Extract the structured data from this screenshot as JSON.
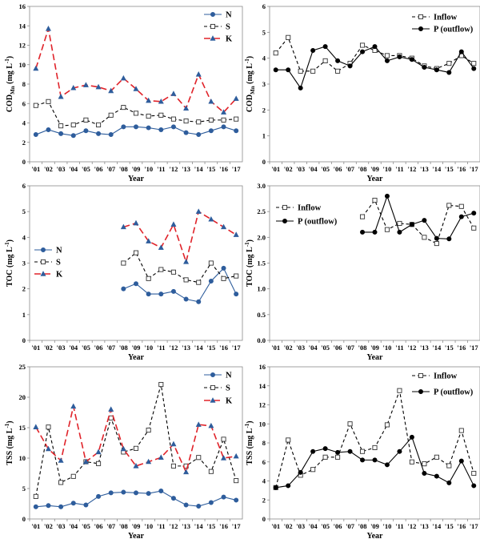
{
  "chart_data": [
    {
      "type": "line",
      "xlabel": "Year",
      "ylabel": {
        "main": "COD",
        "sub": "Mn",
        "unit": " (mg L",
        "sup": "-1",
        "close": ")"
      },
      "x": [
        "'01",
        "'02",
        "'03",
        "'04",
        "'05",
        "'06",
        "'07",
        "'08",
        "'09",
        "'10",
        "'11",
        "'12",
        "'13",
        "'14",
        "'15",
        "'16",
        "'17"
      ],
      "ylim": [
        0,
        16
      ],
      "yticks": [
        0,
        2,
        4,
        6,
        8,
        10,
        12,
        14,
        16
      ],
      "legend": "top-right",
      "series": [
        {
          "name": "N",
          "color": "#2e5d9c",
          "marker": "circle-filled",
          "dash": "solid",
          "values": [
            2.8,
            3.3,
            2.9,
            2.7,
            3.2,
            2.9,
            2.8,
            3.6,
            3.6,
            3.5,
            3.3,
            3.6,
            3.0,
            2.8,
            3.2,
            3.6,
            3.2
          ]
        },
        {
          "name": "S",
          "color": "#000000",
          "marker": "square-open",
          "dash": "dashed",
          "values": [
            5.8,
            6.2,
            3.7,
            3.8,
            4.3,
            3.8,
            4.8,
            5.6,
            5.0,
            4.7,
            4.8,
            4.4,
            4.2,
            4.1,
            4.3,
            4.3,
            4.4
          ]
        },
        {
          "name": "K",
          "color": "#e0232a",
          "marker": "triangle-filled",
          "dash": "longdash",
          "values": [
            9.6,
            13.7,
            6.7,
            7.6,
            7.9,
            7.7,
            7.3,
            8.6,
            7.5,
            6.3,
            6.2,
            7.0,
            5.5,
            9.0,
            6.2,
            5.1,
            6.5
          ]
        }
      ]
    },
    {
      "type": "line",
      "xlabel": "Year",
      "ylabel": {
        "main": "COD",
        "sub": "Mn",
        "unit": " (mg L",
        "sup": "-1",
        "close": ")"
      },
      "x": [
        "'01",
        "'02",
        "'03",
        "'04",
        "'05",
        "'06",
        "'07",
        "'08",
        "'09",
        "'10",
        "'11",
        "'12",
        "'13",
        "'14",
        "'15",
        "'16",
        "'17"
      ],
      "ylim": [
        0,
        6
      ],
      "yticks": [
        0,
        1,
        2,
        3,
        4,
        5,
        6
      ],
      "legend": "top-right",
      "series": [
        {
          "name": "Inflow",
          "color": "#000000",
          "marker": "square-open",
          "dash": "dashed",
          "values": [
            4.2,
            4.8,
            3.5,
            3.5,
            3.9,
            3.5,
            3.8,
            4.5,
            4.3,
            4.1,
            4.1,
            4.0,
            3.7,
            3.6,
            3.8,
            4.1,
            3.8
          ]
        },
        {
          "name": "P (outflow)",
          "color": "#000000",
          "marker": "circle-filled",
          "dash": "solid",
          "values": [
            3.55,
            3.55,
            2.85,
            4.3,
            4.45,
            3.9,
            3.7,
            4.25,
            4.45,
            3.9,
            4.05,
            3.95,
            3.65,
            3.55,
            3.45,
            4.25,
            3.6
          ]
        }
      ]
    },
    {
      "type": "line",
      "xlabel": "Year",
      "ylabel": {
        "main": "TOC",
        "sub": "",
        "unit": " (mg L",
        "sup": "-1",
        "close": ")"
      },
      "x": [
        "'01",
        "'02",
        "'03",
        "'04",
        "'05",
        "'06",
        "'07",
        "'08",
        "'09",
        "'10",
        "'11",
        "'12",
        "'13",
        "'14",
        "'15",
        "'16",
        "'17"
      ],
      "ylim": [
        0,
        6
      ],
      "yticks": [
        0,
        1,
        2,
        3,
        4,
        5,
        6
      ],
      "legend": "mid-left",
      "series": [
        {
          "name": "N",
          "color": "#2e5d9c",
          "marker": "circle-filled",
          "dash": "solid",
          "values": [
            null,
            null,
            null,
            null,
            null,
            null,
            null,
            2.0,
            2.2,
            1.8,
            1.8,
            1.9,
            1.6,
            1.5,
            2.3,
            2.8,
            1.8
          ]
        },
        {
          "name": "S",
          "color": "#000000",
          "marker": "square-open",
          "dash": "dashed",
          "values": [
            null,
            null,
            null,
            null,
            null,
            null,
            null,
            3.0,
            3.4,
            2.4,
            2.75,
            2.65,
            2.35,
            2.25,
            3.0,
            2.4,
            2.5
          ]
        },
        {
          "name": "K",
          "color": "#e0232a",
          "marker": "triangle-filled",
          "dash": "longdash",
          "values": [
            null,
            null,
            null,
            null,
            null,
            null,
            null,
            4.4,
            4.55,
            3.85,
            3.6,
            4.5,
            3.05,
            5.0,
            4.7,
            4.4,
            4.1
          ]
        }
      ]
    },
    {
      "type": "line",
      "xlabel": "Year",
      "ylabel": {
        "main": "TOC",
        "sub": "",
        "unit": " (mg L",
        "sup": "-1",
        "close": ")"
      },
      "x": [
        "'01",
        "'02",
        "'03",
        "'04",
        "'05",
        "'06",
        "'07",
        "'08",
        "'09",
        "'10",
        "'11",
        "'12",
        "'13",
        "'14",
        "'15",
        "'16",
        "'17"
      ],
      "ylim": [
        0,
        3
      ],
      "yticks": [
        0,
        0.5,
        1,
        1.5,
        2,
        2.5,
        3
      ],
      "ytickLabels": [
        "0.0",
        "0.5",
        "1.0",
        "1.5",
        "2.0",
        "2.5",
        "3.0"
      ],
      "legend": "top-left",
      "series": [
        {
          "name": "Inflow",
          "color": "#000000",
          "marker": "square-open",
          "dash": "dashed",
          "values": [
            null,
            null,
            null,
            null,
            null,
            null,
            null,
            2.4,
            2.72,
            2.15,
            2.27,
            2.25,
            2.0,
            1.88,
            2.62,
            2.6,
            2.18
          ]
        },
        {
          "name": "P (outflow)",
          "color": "#000000",
          "marker": "circle-filled",
          "dash": "solid",
          "values": [
            null,
            null,
            null,
            null,
            null,
            null,
            null,
            2.1,
            2.1,
            2.8,
            2.1,
            2.25,
            2.33,
            1.98,
            1.97,
            2.4,
            2.47
          ]
        }
      ]
    },
    {
      "type": "line",
      "xlabel": "Year",
      "ylabel": {
        "main": "TSS",
        "sub": "",
        "unit": " (mg L",
        "sup": "-1",
        "close": ")"
      },
      "x": [
        "'01",
        "'02",
        "'03",
        "'04",
        "'05",
        "'06",
        "'07",
        "'08",
        "'09",
        "'10",
        "'11",
        "'12",
        "'13",
        "'14",
        "'15",
        "'16",
        "'17"
      ],
      "ylim": [
        0,
        25
      ],
      "yticks": [
        0,
        5,
        10,
        15,
        20,
        25
      ],
      "legend": "top-right",
      "series": [
        {
          "name": "N",
          "color": "#2e5d9c",
          "marker": "circle-filled",
          "dash": "solid",
          "values": [
            2.0,
            2.2,
            2.0,
            2.6,
            2.3,
            3.7,
            4.3,
            4.4,
            4.3,
            4.2,
            4.6,
            3.4,
            2.3,
            2.1,
            2.7,
            3.6,
            3.1
          ]
        },
        {
          "name": "S",
          "color": "#000000",
          "marker": "square-open",
          "dash": "dashed",
          "values": [
            3.7,
            15.1,
            6.0,
            7.0,
            9.4,
            9.1,
            16.6,
            11.0,
            11.6,
            14.6,
            22.1,
            8.7,
            8.7,
            10.1,
            7.8,
            13.1,
            6.3
          ]
        },
        {
          "name": "K",
          "color": "#e0232a",
          "marker": "triangle-filled",
          "dash": "longdash",
          "values": [
            15.1,
            11.5,
            9.6,
            18.5,
            9.4,
            11.0,
            18.0,
            11.5,
            8.7,
            9.4,
            10.1,
            12.3,
            7.7,
            15.5,
            15.3,
            10.0,
            10.3
          ]
        }
      ]
    },
    {
      "type": "line",
      "xlabel": "Year",
      "ylabel": {
        "main": "TSS",
        "sub": "",
        "unit": " (mg L",
        "sup": "-1",
        "close": ")"
      },
      "x": [
        "'01",
        "'02",
        "'03",
        "'04",
        "'05",
        "'06",
        "'07",
        "'08",
        "'09",
        "'10",
        "'11",
        "'12",
        "'13",
        "'14",
        "'15",
        "'16",
        "'17"
      ],
      "ylim": [
        0,
        16
      ],
      "yticks": [
        0,
        2,
        4,
        6,
        8,
        10,
        12,
        14,
        16
      ],
      "legend": "top-right",
      "series": [
        {
          "name": "Inflow",
          "color": "#000000",
          "marker": "square-open",
          "dash": "dashed",
          "values": [
            3.3,
            8.3,
            4.6,
            5.2,
            6.5,
            6.5,
            10.0,
            7.1,
            7.5,
            9.9,
            13.5,
            6.0,
            5.8,
            6.5,
            5.6,
            9.3,
            4.8
          ]
        },
        {
          "name": "P (outflow)",
          "color": "#000000",
          "marker": "circle-filled",
          "dash": "solid",
          "values": [
            3.3,
            3.5,
            4.9,
            7.1,
            7.4,
            7.0,
            7.1,
            6.2,
            6.2,
            5.7,
            7.1,
            8.6,
            4.8,
            4.5,
            3.8,
            6.1,
            3.5
          ]
        }
      ]
    }
  ]
}
